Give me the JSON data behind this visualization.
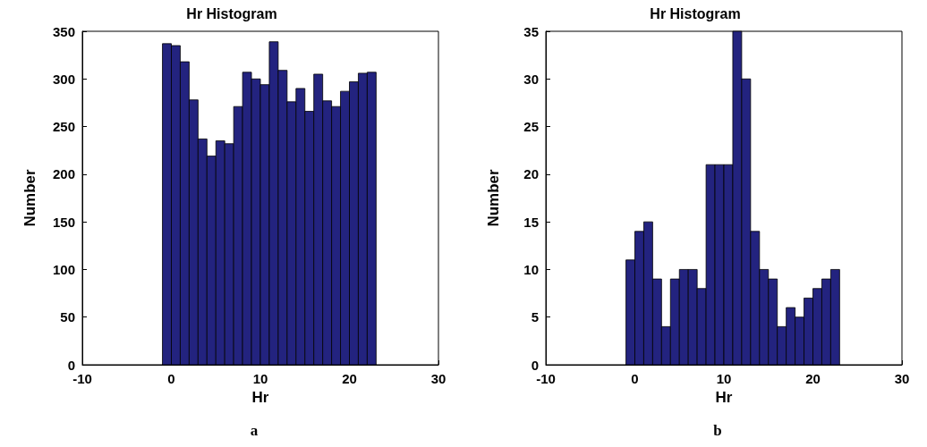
{
  "chart_data": [
    {
      "type": "histogram",
      "title": "Hr Histogram",
      "xlabel": "Hr",
      "ylabel": "Number",
      "annotations": [
        "a"
      ],
      "bins": [
        -1,
        0,
        1,
        2,
        3,
        4,
        5,
        6,
        7,
        8,
        9,
        10,
        11,
        12,
        13,
        14,
        15,
        16,
        17,
        18,
        19,
        20,
        21,
        22,
        23
      ],
      "values": [
        337,
        335,
        318,
        278,
        237,
        219,
        235,
        232,
        271,
        307,
        300,
        294,
        339,
        309,
        276,
        290,
        266,
        305,
        277,
        271,
        287,
        297,
        306,
        307
      ],
      "color": "#23237f",
      "xlim": [
        -10,
        30
      ],
      "xticks": [
        -10,
        0,
        10,
        20,
        30
      ],
      "ylim": [
        0,
        350
      ],
      "yticks": [
        0,
        50,
        100,
        150,
        200,
        250,
        300,
        350
      ]
    },
    {
      "type": "histogram",
      "title": "Hr Histogram",
      "xlabel": "Hr",
      "ylabel": "Number",
      "annotations": [
        "b"
      ],
      "bins": [
        -1,
        0,
        1,
        2,
        3,
        4,
        5,
        6,
        7,
        8,
        9,
        10,
        11,
        12,
        13,
        14,
        15,
        16,
        17,
        18,
        19,
        20,
        21,
        22,
        23
      ],
      "values": [
        11,
        14,
        15,
        9,
        4,
        9,
        10,
        10,
        8,
        21,
        21,
        21,
        35,
        30,
        14,
        10,
        9,
        4,
        6,
        5,
        7,
        8,
        9,
        10
      ],
      "color": "#23237f",
      "xlim": [
        -10,
        30
      ],
      "xticks": [
        -10,
        0,
        10,
        20,
        30
      ],
      "ylim": [
        0,
        35
      ],
      "yticks": [
        0,
        5,
        10,
        15,
        20,
        25,
        30,
        35
      ]
    }
  ]
}
